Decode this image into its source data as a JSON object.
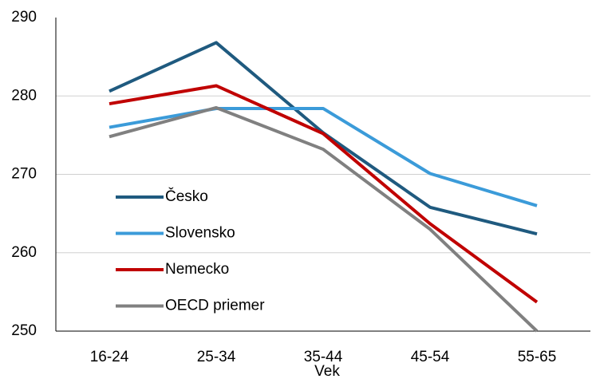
{
  "chart_data": {
    "type": "line",
    "x_label": "Vek",
    "categories": [
      "16-24",
      "25-34",
      "35-44",
      "45-54",
      "55-65"
    ],
    "series": [
      {
        "name": "Česko",
        "color": "#1f5a7f",
        "values": [
          280.6,
          286.8,
          275.3,
          265.8,
          262.4
        ]
      },
      {
        "name": "Slovensko",
        "color": "#3b9bd9",
        "values": [
          276.0,
          278.4,
          278.4,
          270.1,
          266.0
        ]
      },
      {
        "name": "Nemecko",
        "color": "#c00000",
        "values": [
          279.0,
          281.3,
          275.2,
          263.7,
          253.7
        ]
      },
      {
        "name": "OECD priemer",
        "color": "#808080",
        "values": [
          274.8,
          278.5,
          273.2,
          263.0,
          250.0
        ]
      }
    ],
    "ylim": [
      250,
      290
    ],
    "yticks": [
      250,
      260,
      270,
      280,
      290
    ],
    "grid": true,
    "legend": "left"
  }
}
